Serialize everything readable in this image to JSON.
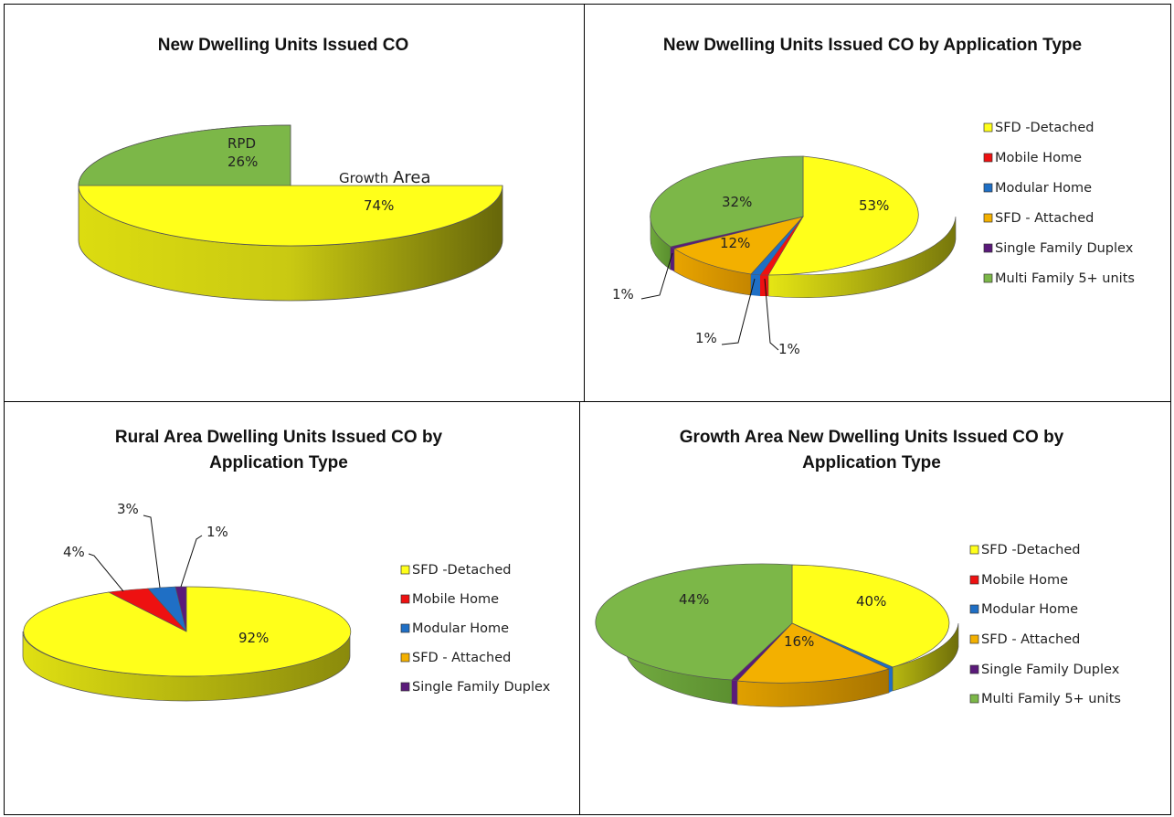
{
  "palette": {
    "SFD -Detached": "#ffff1a",
    "Mobile Home": "#ee1111",
    "Modular Home": "#1f6fc5",
    "SFD - Attached": "#f3b000",
    "Single Family Duplex": "#5a1a7a",
    "Multi Family 5+ units": "#7cb748",
    "RPD": "#7cb748",
    "Growth Area": "#ffff1a"
  },
  "chart_data": [
    {
      "type": "pie",
      "title": "New Dwelling Units Issued CO",
      "slices": [
        {
          "label": "RPD",
          "value": 26,
          "display": "26%"
        },
        {
          "label": "Growth Area",
          "value": 74,
          "display": "74%"
        }
      ],
      "legend": []
    },
    {
      "type": "pie",
      "title": "New Dwelling Units Issued CO by Application Type",
      "slices": [
        {
          "label": "SFD -Detached",
          "value": 53,
          "display": "53%"
        },
        {
          "label": "Mobile Home",
          "value": 1,
          "display": "1%"
        },
        {
          "label": "Modular Home",
          "value": 1,
          "display": "1%"
        },
        {
          "label": "SFD - Attached",
          "value": 12,
          "display": "12%"
        },
        {
          "label": "Single Family Duplex",
          "value": 1,
          "display": "1%"
        },
        {
          "label": "Multi Family 5+ units",
          "value": 32,
          "display": "32%"
        }
      ],
      "legend": [
        "SFD -Detached",
        "Mobile Home",
        "Modular Home",
        "SFD - Attached",
        "Single Family Duplex",
        "Multi Family 5+ units"
      ],
      "legend_position": "right"
    },
    {
      "type": "pie",
      "title_lines": [
        "Rural Area Dwelling Units Issued CO by",
        "Application Type"
      ],
      "slices": [
        {
          "label": "SFD -Detached",
          "value": 92,
          "display": "92%"
        },
        {
          "label": "Mobile Home",
          "value": 4,
          "display": "4%"
        },
        {
          "label": "Modular Home",
          "value": 3,
          "display": "3%"
        },
        {
          "label": "SFD - Attached",
          "value": 0,
          "display": ""
        },
        {
          "label": "Single Family Duplex",
          "value": 1,
          "display": "1%"
        }
      ],
      "legend": [
        "SFD -Detached",
        "Mobile Home",
        "Modular Home",
        "SFD - Attached",
        "Single Family Duplex"
      ],
      "legend_position": "right"
    },
    {
      "type": "pie",
      "title_lines": [
        "Growth Area New Dwelling Units Issued CO by",
        "Application Type"
      ],
      "slices": [
        {
          "label": "SFD -Detached",
          "value": 40,
          "display": "40%"
        },
        {
          "label": "Mobile Home",
          "value": 0,
          "display": ""
        },
        {
          "label": "Modular Home",
          "value": 0.3,
          "display": ""
        },
        {
          "label": "SFD - Attached",
          "value": 16,
          "display": "16%"
        },
        {
          "label": "Single Family Duplex",
          "value": 0.3,
          "display": ""
        },
        {
          "label": "Multi Family 5+ units",
          "value": 44,
          "display": "44%"
        }
      ],
      "legend": [
        "SFD -Detached",
        "Mobile Home",
        "Modular Home",
        "SFD - Attached",
        "Single Family Duplex",
        "Multi Family 5+ units"
      ],
      "legend_position": "right"
    }
  ]
}
